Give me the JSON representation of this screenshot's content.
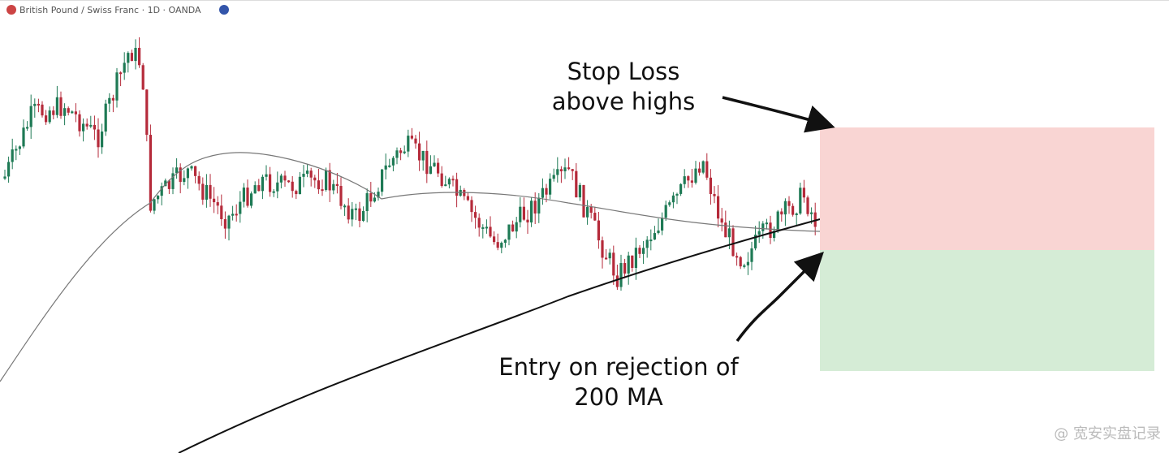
{
  "header": {
    "title": "British Pound / Swiss Franc · 1D · OANDA"
  },
  "annotations": {
    "stop_loss": [
      "Stop Loss",
      "above highs"
    ],
    "entry": [
      "Entry on rejection of",
      "200 MA"
    ]
  },
  "watermark": "@ 宽安实盘记录"
}
